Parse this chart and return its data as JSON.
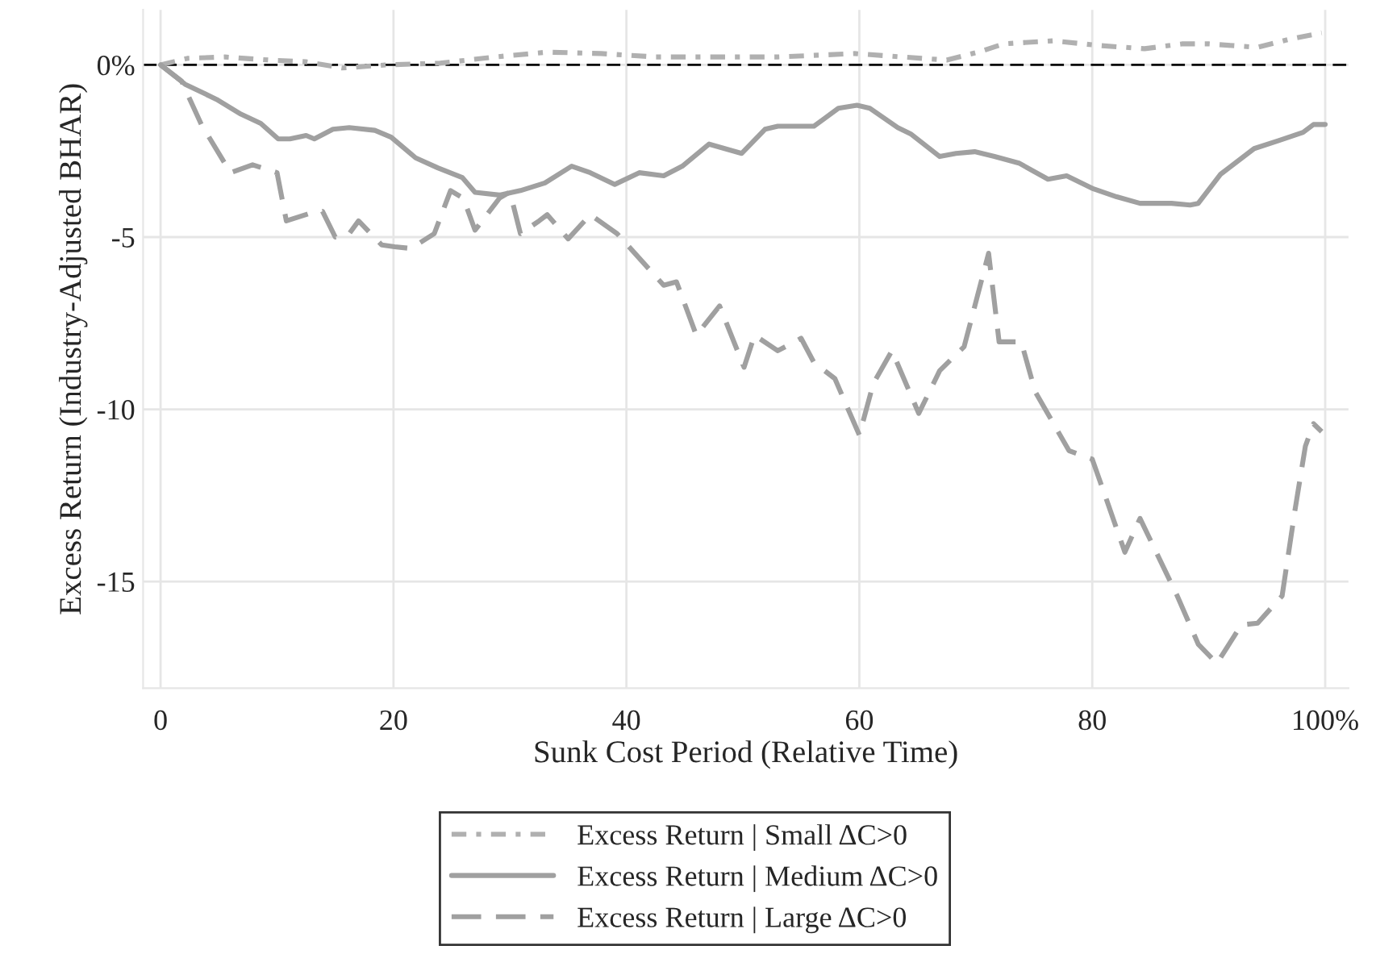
{
  "chart_data": {
    "type": "line",
    "xlabel": "Sunk Cost Period (Relative Time)",
    "ylabel": "Excess Return (Industry-Adjusted BHAR)",
    "xlim": [
      -1.5,
      102
    ],
    "ylim": [
      -18.1,
      1.6
    ],
    "xticks": [
      0,
      20,
      40,
      60,
      80,
      {
        "value": 100,
        "label": "100%"
      }
    ],
    "yticks": [
      {
        "value": 0,
        "label": "0%"
      },
      -5,
      -10,
      -15
    ],
    "grid": true,
    "legend": "bottom",
    "ref_lines": [
      {
        "axis": "y",
        "value": 0,
        "color": "#000000",
        "line_style": "dashed"
      }
    ],
    "series": [
      {
        "name": "Excess Return | Small ΔC>0",
        "color": "#b0b0b0",
        "line_style": "dashdot",
        "x": [
          0,
          2.3,
          5.5,
          9.3,
          12.5,
          15.6,
          19.4,
          24.0,
          28.7,
          33.2,
          37.8,
          42.5,
          49.4,
          53.0,
          59.6,
          63.7,
          67.5,
          70.2,
          72.4,
          76.6,
          80.7,
          84.5,
          87.7,
          90.0,
          94.2,
          97.0,
          99.7
        ],
        "values": [
          0,
          0.19,
          0.23,
          0.14,
          0.09,
          -0.09,
          0,
          0.05,
          0.23,
          0.37,
          0.33,
          0.23,
          0.23,
          0.23,
          0.33,
          0.23,
          0.14,
          0.37,
          0.61,
          0.7,
          0.56,
          0.47,
          0.61,
          0.61,
          0.51,
          0.75,
          0.93
        ]
      },
      {
        "name": "Excess Return | Medium ΔC>0",
        "color": "#a0a0a0",
        "line_style": "solid",
        "x": [
          0,
          2.1,
          4.8,
          6.9,
          8.6,
          10.1,
          11.1,
          12.5,
          13.2,
          14.8,
          16.2,
          18.4,
          19.8,
          21.9,
          23.8,
          25.9,
          27.0,
          29.1,
          30.9,
          33.0,
          35.3,
          36.9,
          39.0,
          41.1,
          43.2,
          44.8,
          47.1,
          49.9,
          51.9,
          53.0,
          56.1,
          58.2,
          59.8,
          60.9,
          63.3,
          64.4,
          66.9,
          68.3,
          69.9,
          71.6,
          73.7,
          76.2,
          77.8,
          80.1,
          82.1,
          84.1,
          86.8,
          88.4,
          89.1,
          91.0,
          93.9,
          96.0,
          98.1,
          99.0,
          100
        ],
        "values": [
          0,
          -0.56,
          -1.0,
          -1.43,
          -1.7,
          -2.15,
          -2.15,
          -2.05,
          -2.15,
          -1.87,
          -1.82,
          -1.9,
          -2.1,
          -2.7,
          -2.99,
          -3.27,
          -3.7,
          -3.78,
          -3.65,
          -3.43,
          -2.94,
          -3.13,
          -3.47,
          -3.13,
          -3.22,
          -2.94,
          -2.3,
          -2.57,
          -1.87,
          -1.78,
          -1.78,
          -1.26,
          -1.17,
          -1.26,
          -1.82,
          -2.0,
          -2.66,
          -2.57,
          -2.52,
          -2.66,
          -2.85,
          -3.32,
          -3.22,
          -3.6,
          -3.83,
          -4.02,
          -4.02,
          -4.07,
          -4.02,
          -3.18,
          -2.43,
          -2.2,
          -1.96,
          -1.73,
          -1.73
        ]
      },
      {
        "name": "Excess Return | Large ΔC>0",
        "color": "#a0a0a0",
        "line_style": "dashed",
        "x": [
          0,
          1.8,
          3.5,
          6.0,
          7.9,
          10.0,
          10.8,
          12.9,
          13.9,
          15.0,
          16.2,
          17.0,
          19.0,
          20.1,
          21.5,
          23.5,
          24.9,
          26.0,
          27.0,
          29.1,
          30.0,
          30.9,
          32.5,
          33.2,
          35.0,
          36.9,
          39.2,
          43.2,
          44.3,
          46.0,
          48.0,
          50.1,
          51.0,
          53.0,
          55.0,
          56.1,
          57.9,
          60.0,
          61.2,
          62.8,
          65.1,
          66.9,
          69.0,
          71.1,
          72.0,
          73.9,
          75.1,
          78.0,
          80.0,
          81.3,
          82.8,
          84.1,
          87.3,
          89.1,
          90.7,
          92.8,
          94.2,
          96.3,
          97.4,
          98.3,
          99.0,
          99.7
        ],
        "values": [
          0,
          -0.47,
          -1.73,
          -3.13,
          -2.9,
          -3.13,
          -4.53,
          -4.3,
          -4.25,
          -5.0,
          -4.9,
          -4.53,
          -5.23,
          -5.28,
          -5.33,
          -4.9,
          -3.65,
          -3.87,
          -4.8,
          -3.87,
          -3.69,
          -4.9,
          -4.53,
          -4.35,
          -5.05,
          -4.35,
          -4.9,
          -6.4,
          -6.3,
          -7.85,
          -7.0,
          -8.78,
          -7.85,
          -8.3,
          -7.94,
          -8.64,
          -9.11,
          -10.75,
          -9.25,
          -8.3,
          -10.12,
          -8.88,
          -8.18,
          -5.47,
          -8.04,
          -8.04,
          -9.49,
          -11.2,
          -11.45,
          -12.7,
          -14.15,
          -13.17,
          -15.42,
          -16.82,
          -17.38,
          -16.26,
          -16.21,
          -15.42,
          -12.94,
          -11.07,
          -10.42,
          -10.65
        ]
      }
    ]
  }
}
